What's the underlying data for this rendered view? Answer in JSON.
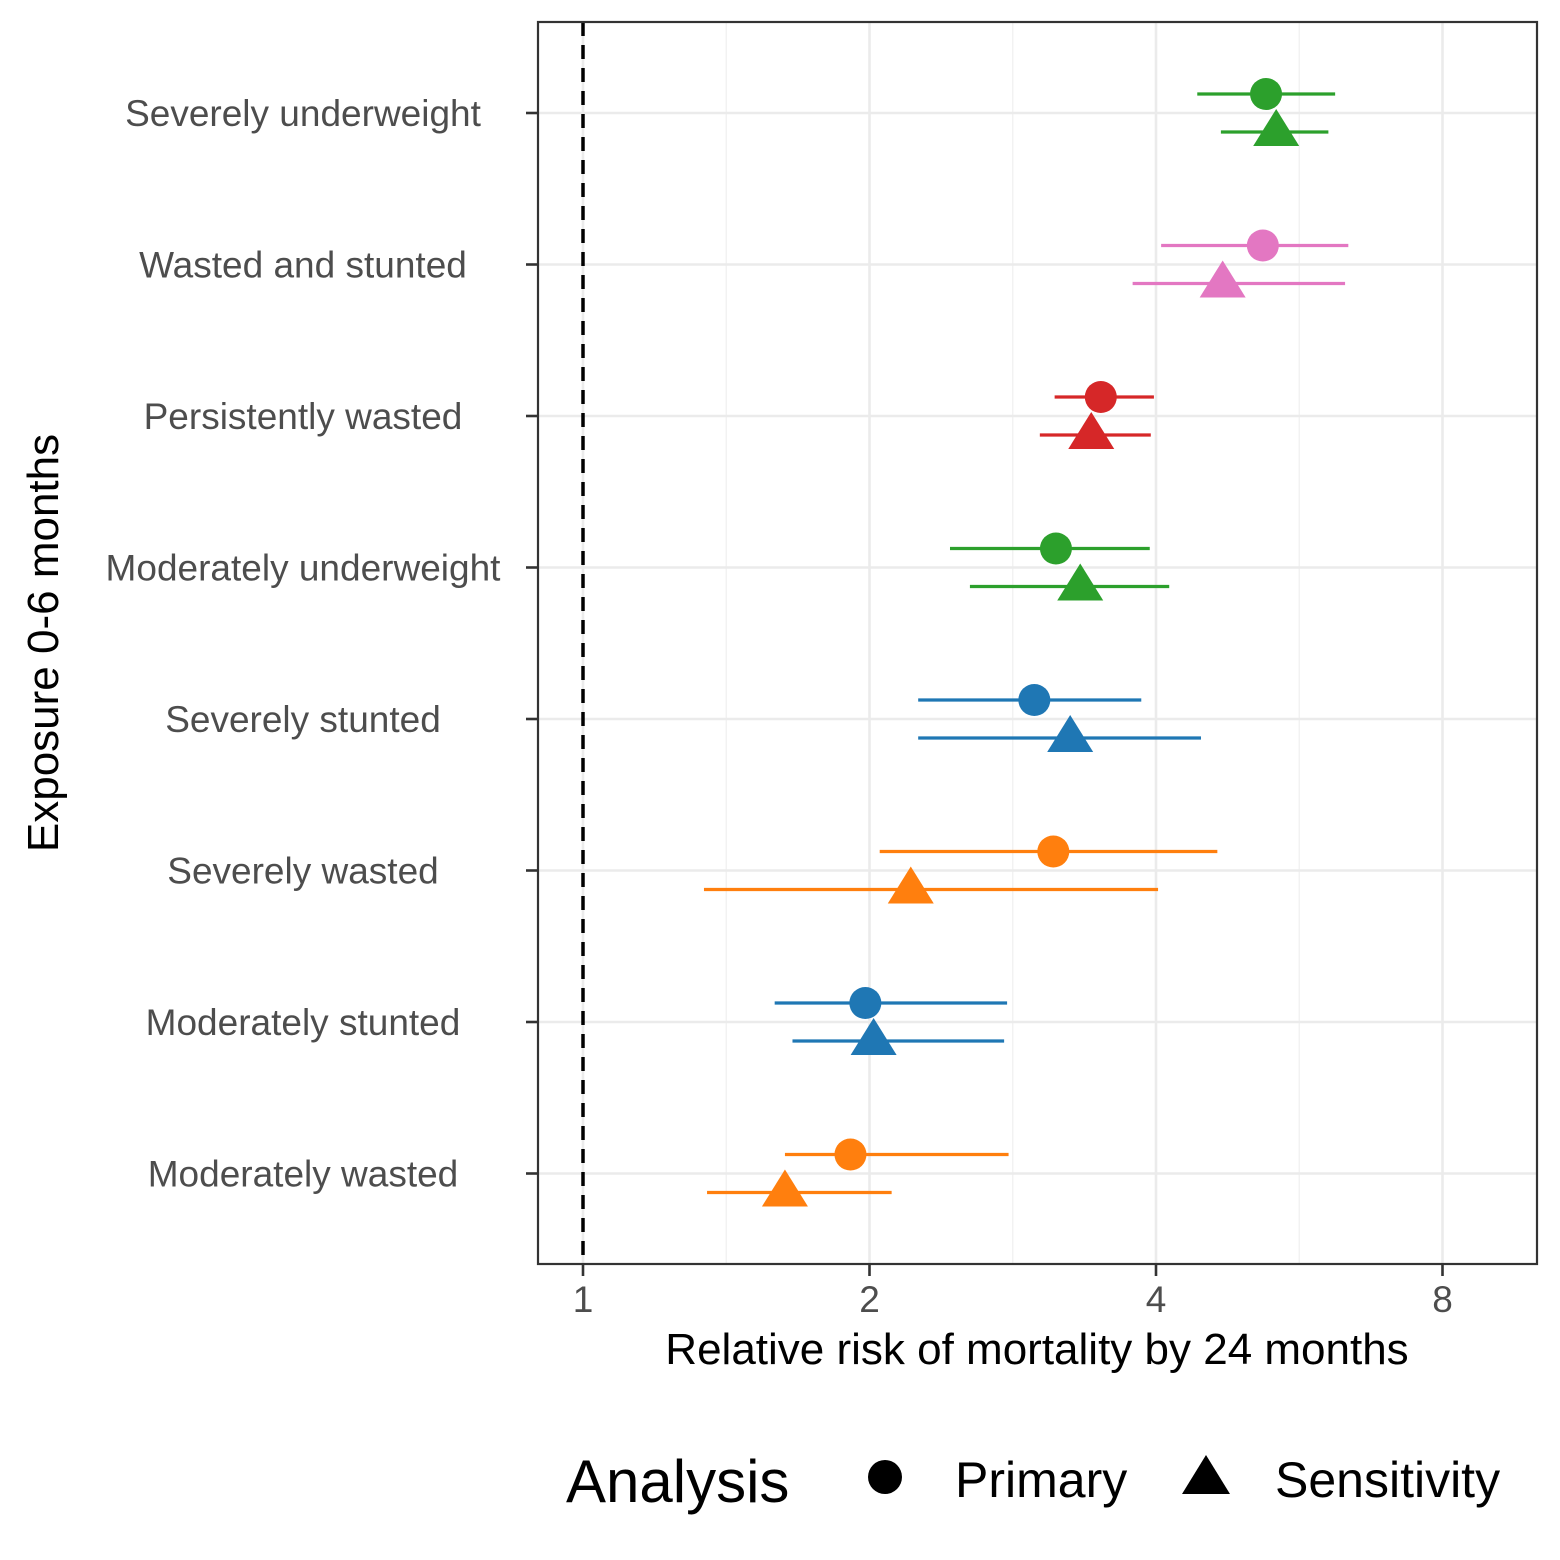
{
  "chart_data": {
    "type": "scatter",
    "subtype": "forest-plot",
    "xlabel": "Relative risk of mortality by 24 months",
    "ylabel": "Exposure 0-6 months",
    "x_scale": "log2",
    "xlim": [
      0.9,
      9.8
    ],
    "x_ticks": [
      1,
      2,
      4,
      8
    ],
    "x_tick_labels": [
      "1",
      "2",
      "4",
      "8"
    ],
    "reference_line": 1,
    "grid": true,
    "legend": {
      "title": "Analysis",
      "placement": "bottom",
      "items": [
        {
          "label": "Primary",
          "shape": "circle"
        },
        {
          "label": "Sensitivity",
          "shape": "triangle"
        }
      ]
    },
    "categories": [
      "Severely underweight",
      "Wasted and stunted",
      "Persistently wasted",
      "Moderately underweight",
      "Severely stunted",
      "Severely wasted",
      "Moderately stunted",
      "Moderately wasted"
    ],
    "colors": [
      "#2ca02c",
      "#e377c2",
      "#d62728",
      "#2ca02c",
      "#1f77b4",
      "#ff7f0e",
      "#1f77b4",
      "#ff7f0e"
    ],
    "series": [
      {
        "name": "Primary",
        "shape": "circle",
        "estimates": [
          5.22,
          5.18,
          3.5,
          3.14,
          2.98,
          3.12,
          1.98,
          1.91
        ],
        "lower": [
          4.42,
          4.05,
          3.13,
          2.43,
          2.25,
          2.05,
          1.59,
          1.63
        ],
        "upper": [
          6.17,
          6.37,
          3.98,
          3.94,
          3.86,
          4.64,
          2.79,
          2.8
        ]
      },
      {
        "name": "Sensitivity",
        "shape": "triangle",
        "estimates": [
          5.35,
          4.7,
          3.42,
          3.33,
          3.25,
          2.21,
          2.02,
          1.63
        ],
        "lower": [
          4.68,
          3.78,
          3.02,
          2.55,
          2.25,
          1.34,
          1.66,
          1.35
        ],
        "upper": [
          6.07,
          6.32,
          3.95,
          4.13,
          4.46,
          4.02,
          2.77,
          2.11
        ]
      }
    ]
  }
}
